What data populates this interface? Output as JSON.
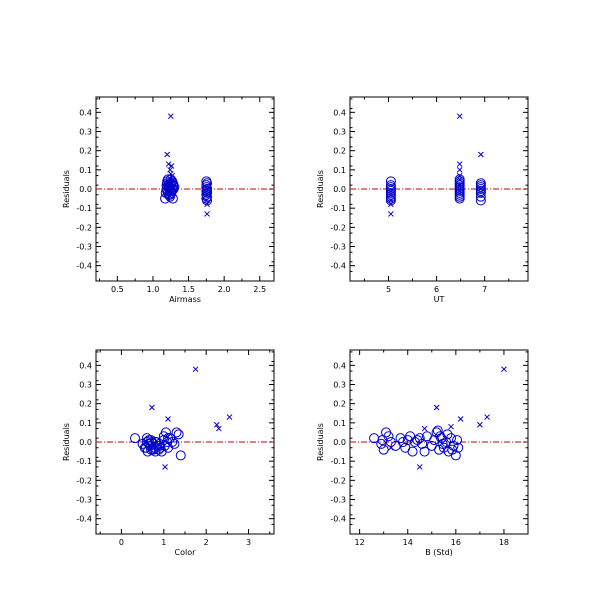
{
  "chart_data": [
    {
      "type": "scatter",
      "xlabel": "Airmass",
      "ylabel": "Residuals",
      "xlim": [
        0.2,
        2.7
      ],
      "ylim": [
        -0.48,
        0.48
      ],
      "xticks": [
        0.5,
        1.0,
        1.5,
        2.0,
        2.5
      ],
      "xtick_labels": [
        "0.5",
        "1.0",
        "1.5",
        "2.0",
        "2.5"
      ],
      "yticks": [
        -0.4,
        -0.3,
        -0.2,
        -0.1,
        0.0,
        0.1,
        0.2,
        0.3,
        0.4
      ],
      "ytick_labels": [
        "-0.4",
        "-0.3",
        "-0.2",
        "-0.1",
        "0.0",
        "0.1",
        "0.2",
        "0.3",
        "0.4"
      ],
      "zero_line": 0,
      "series": [
        {
          "marker": "circle",
          "x": [
            1.17,
            1.18,
            1.19,
            1.2,
            1.2,
            1.21,
            1.22,
            1.22,
            1.23,
            1.24,
            1.25,
            1.25,
            1.26,
            1.27,
            1.28,
            1.28,
            1.29,
            1.3,
            1.2,
            1.24,
            1.27,
            1.19,
            1.22,
            1.26,
            1.29,
            1.21,
            1.25,
            1.75,
            1.75,
            1.75,
            1.75,
            1.75,
            1.76,
            1.76,
            1.76,
            1.76,
            1.76,
            1.76,
            1.75,
            1.76
          ],
          "y": [
            -0.05,
            -0.02,
            0.02,
            0.03,
            -0.01,
            0.05,
            -0.03,
            0.01,
            0.0,
            -0.04,
            0.02,
            0.05,
            -0.02,
            0.0,
            0.03,
            -0.05,
            0.02,
            0.01,
            0.04,
            -0.03,
            0.04,
            0.0,
            0.02,
            -0.01,
            0.0,
            -0.02,
            0.03,
            0.04,
            0.02,
            0.01,
            -0.01,
            -0.03,
            0.0,
            -0.02,
            -0.04,
            -0.06,
            0.03,
            0.0,
            -0.05,
            -0.01
          ]
        },
        {
          "marker": "x",
          "x": [
            1.2,
            1.22,
            1.24,
            1.25,
            1.26,
            1.27,
            1.28,
            1.25,
            1.26,
            1.24,
            1.27,
            1.23,
            1.76,
            1.76,
            1.75,
            1.76
          ],
          "y": [
            0.18,
            0.13,
            0.1,
            0.38,
            0.12,
            0.07,
            0.05,
            0.08,
            0.03,
            0.0,
            -0.02,
            0.02,
            -0.13,
            -0.08,
            -0.06,
            0.0
          ]
        }
      ]
    },
    {
      "type": "scatter",
      "xlabel": "UT",
      "ylabel": "Residuals",
      "xlim": [
        4.2,
        7.9
      ],
      "ylim": [
        -0.48,
        0.48
      ],
      "xticks": [
        5,
        6,
        7
      ],
      "xtick_labels": [
        "5",
        "6",
        "7"
      ],
      "yticks": [
        -0.4,
        -0.3,
        -0.2,
        -0.1,
        0.0,
        0.1,
        0.2,
        0.3,
        0.4
      ],
      "ytick_labels": [
        "-0.4",
        "-0.3",
        "-0.2",
        "-0.1",
        "0.0",
        "0.1",
        "0.2",
        "0.3",
        "0.4"
      ],
      "zero_line": 0,
      "series": [
        {
          "marker": "circle",
          "x": [
            5.05,
            5.05,
            5.05,
            5.05,
            5.05,
            5.05,
            5.05,
            5.05,
            5.05,
            5.05,
            6.48,
            6.48,
            6.48,
            6.48,
            6.48,
            6.48,
            6.48,
            6.48,
            6.48,
            6.48,
            6.48,
            6.48,
            6.92,
            6.92,
            6.92,
            6.92,
            6.92,
            6.92,
            6.92,
            6.92
          ],
          "y": [
            0.04,
            0.02,
            0.01,
            -0.01,
            -0.02,
            -0.03,
            -0.04,
            -0.05,
            -0.06,
            0.0,
            0.05,
            0.03,
            0.02,
            0.01,
            0.0,
            -0.01,
            -0.02,
            -0.03,
            -0.04,
            -0.05,
            0.04,
            0.02,
            0.03,
            0.02,
            0.01,
            0.0,
            -0.01,
            -0.02,
            -0.04,
            -0.06
          ]
        },
        {
          "marker": "x",
          "x": [
            5.05,
            5.05,
            5.05,
            6.48,
            6.48,
            6.48,
            6.48,
            6.48,
            6.48,
            6.92,
            6.92
          ],
          "y": [
            -0.13,
            -0.08,
            -0.06,
            0.38,
            0.13,
            0.1,
            0.07,
            0.05,
            0.02,
            0.18,
            0.0
          ]
        }
      ]
    },
    {
      "type": "scatter",
      "xlabel": "Color",
      "ylabel": "Residuals",
      "xlim": [
        -0.6,
        3.6
      ],
      "ylim": [
        -0.48,
        0.48
      ],
      "xticks": [
        0,
        1,
        2,
        3
      ],
      "xtick_labels": [
        "0",
        "1",
        "2",
        "3"
      ],
      "yticks": [
        -0.4,
        -0.3,
        -0.2,
        -0.1,
        0.0,
        0.1,
        0.2,
        0.3,
        0.4
      ],
      "ytick_labels": [
        "-0.4",
        "-0.3",
        "-0.2",
        "-0.1",
        "0.0",
        "0.1",
        "0.2",
        "0.3",
        "0.4"
      ],
      "zero_line": 0,
      "series": [
        {
          "marker": "circle",
          "x": [
            0.32,
            0.5,
            0.55,
            0.6,
            0.62,
            0.65,
            0.68,
            0.7,
            0.72,
            0.75,
            0.78,
            0.8,
            0.82,
            0.85,
            0.88,
            0.9,
            0.92,
            0.95,
            1.0,
            1.02,
            1.05,
            1.08,
            1.1,
            1.15,
            1.2,
            1.25,
            1.3,
            1.35,
            1.4,
            0.6,
            0.65,
            0.7,
            0.75,
            0.8,
            0.9,
            1.0,
            1.1,
            0.58
          ],
          "y": [
            0.02,
            -0.01,
            -0.03,
            0.0,
            -0.05,
            0.01,
            -0.02,
            -0.04,
            0.0,
            -0.01,
            -0.03,
            -0.05,
            0.0,
            -0.02,
            -0.04,
            -0.01,
            -0.03,
            -0.05,
            0.03,
            -0.02,
            0.05,
            0.0,
            -0.03,
            0.02,
            0.0,
            -0.01,
            0.05,
            0.04,
            -0.07,
            0.02,
            -0.01,
            0.01,
            -0.04,
            0.0,
            -0.02,
            0.01,
            0.02,
            -0.03
          ]
        },
        {
          "marker": "x",
          "x": [
            0.72,
            1.03,
            1.1,
            1.75,
            2.25,
            2.3,
            2.55
          ],
          "y": [
            0.18,
            -0.13,
            0.12,
            0.38,
            0.09,
            0.07,
            0.13
          ]
        }
      ]
    },
    {
      "type": "scatter",
      "xlabel": "B (Std)",
      "ylabel": "Residuals",
      "xlim": [
        11.6,
        19.0
      ],
      "ylim": [
        -0.48,
        0.48
      ],
      "xticks": [
        12,
        14,
        16,
        18
      ],
      "xtick_labels": [
        "12",
        "14",
        "16",
        "18"
      ],
      "yticks": [
        -0.4,
        -0.3,
        -0.2,
        -0.1,
        0.0,
        0.1,
        0.2,
        0.3,
        0.4
      ],
      "ytick_labels": [
        "-0.4",
        "-0.3",
        "-0.2",
        "-0.1",
        "0.0",
        "0.1",
        "0.2",
        "0.3",
        "0.4"
      ],
      "zero_line": 0,
      "series": [
        {
          "marker": "circle",
          "x": [
            12.6,
            12.9,
            13.0,
            13.2,
            13.3,
            13.5,
            13.7,
            13.9,
            14.0,
            14.1,
            14.2,
            14.3,
            14.5,
            14.6,
            14.8,
            15.0,
            15.1,
            15.2,
            15.3,
            15.4,
            15.5,
            15.6,
            15.7,
            15.8,
            15.9,
            16.0,
            16.1,
            13.1,
            13.8,
            14.4,
            15.25,
            15.35,
            15.45,
            15.65,
            15.85,
            16.05,
            12.95,
            14.7
          ],
          "y": [
            0.02,
            -0.01,
            -0.04,
            0.03,
            0.0,
            -0.02,
            0.02,
            -0.03,
            0.01,
            0.03,
            -0.05,
            0.0,
            0.02,
            -0.01,
            0.03,
            -0.02,
            0.01,
            0.05,
            -0.04,
            0.02,
            -0.03,
            0.0,
            -0.05,
            0.02,
            -0.02,
            -0.07,
            -0.03,
            0.05,
            0.0,
            0.01,
            0.06,
            0.03,
            -0.01,
            0.04,
            -0.04,
            0.01,
            0.01,
            -0.05
          ]
        },
        {
          "marker": "x",
          "x": [
            13.3,
            14.5,
            14.7,
            15.2,
            15.8,
            16.2,
            17.0,
            17.3,
            18.0
          ],
          "y": [
            -0.03,
            -0.13,
            0.07,
            0.18,
            0.08,
            0.12,
            0.09,
            0.13,
            0.38
          ]
        }
      ]
    }
  ],
  "colors": {
    "marker": "#0000cc",
    "zero_line": "#cc0000",
    "axes": "#000000"
  }
}
